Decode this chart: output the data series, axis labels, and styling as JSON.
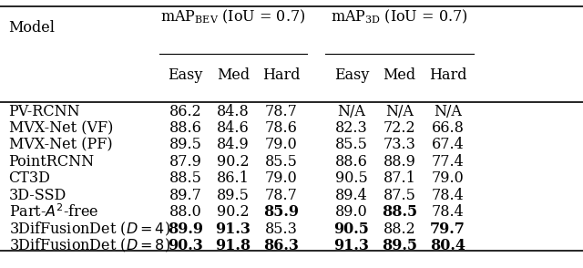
{
  "rows": [
    {
      "model": "PV-RCNN",
      "model_plain": "PV-RCNN",
      "vals": [
        "86.2",
        "84.8",
        "78.7",
        "N/A",
        "N/A",
        "N/A"
      ],
      "bold": []
    },
    {
      "model": "MVX-Net (VF)",
      "model_plain": "MVX-Net (VF)",
      "vals": [
        "88.6",
        "84.6",
        "78.6",
        "82.3",
        "72.2",
        "66.8"
      ],
      "bold": []
    },
    {
      "model": "MVX-Net (PF)",
      "model_plain": "MVX-Net (PF)",
      "vals": [
        "89.5",
        "84.9",
        "79.0",
        "85.5",
        "73.3",
        "67.4"
      ],
      "bold": []
    },
    {
      "model": "PointRCNN",
      "model_plain": "PointRCNN",
      "vals": [
        "87.9",
        "90.2",
        "85.5",
        "88.6",
        "88.9",
        "77.4"
      ],
      "bold": []
    },
    {
      "model": "CT3D",
      "model_plain": "CT3D",
      "vals": [
        "88.5",
        "86.1",
        "79.0",
        "90.5",
        "87.1",
        "79.0"
      ],
      "bold": []
    },
    {
      "model": "3D-SSD",
      "model_plain": "3D-SSD",
      "vals": [
        "89.7",
        "89.5",
        "78.7",
        "89.4",
        "87.5",
        "78.4"
      ],
      "bold": []
    },
    {
      "model": "Part-\\u00242-free",
      "model_plain": "Part-A2-free",
      "vals": [
        "88.0",
        "90.2",
        "85.9",
        "89.0",
        "88.5",
        "78.4"
      ],
      "bold": [
        2,
        4
      ]
    },
    {
      "model": "3DifFusionDet (D=4)",
      "model_plain": "3DifFusionDet (D=4)",
      "vals": [
        "89.9",
        "91.3",
        "85.3",
        "90.5",
        "88.2",
        "79.7"
      ],
      "bold": [
        0,
        1,
        3,
        5
      ]
    },
    {
      "model": "3DifFusionDet (D=8)",
      "model_plain": "3DifFusionDet (D=8)",
      "vals": [
        "90.3",
        "91.8",
        "86.3",
        "91.3",
        "89.5",
        "80.4"
      ],
      "bold": [
        0,
        1,
        2,
        3,
        4,
        5
      ]
    }
  ],
  "sub_headers": [
    "Easy",
    "Med",
    "Hard",
    "Easy",
    "Med",
    "Hard"
  ],
  "fs_header": 11.5,
  "fs_body": 11.5
}
